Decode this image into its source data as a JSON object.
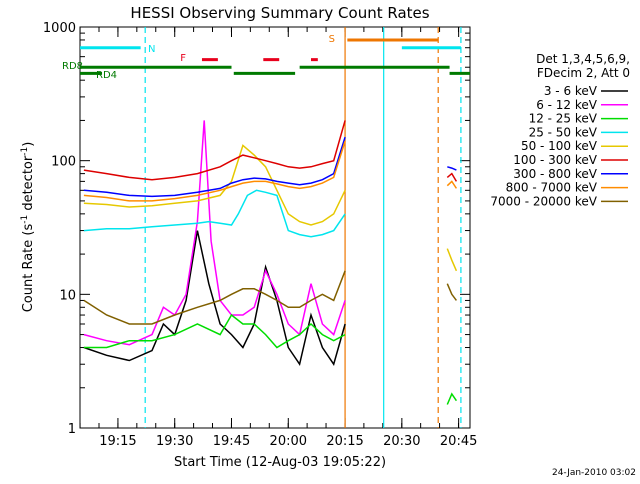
{
  "chart_data": {
    "type": "line",
    "title": "HESSI Observing Summary Count Rates",
    "xlabel": "Start Time (12-Aug-03 19:05:22)",
    "ylabel": "Count Rate (s⁻¹ detector⁻¹)",
    "ylabel_parts": {
      "base": "Count Rate (s",
      "exp1": "-1",
      "mid": " detector",
      "exp2": "-1",
      "end": ")"
    },
    "yscale": "log",
    "ylim": [
      1,
      1000
    ],
    "xlim_minutes": [
      19.083,
      20.8
    ],
    "x_tick_labels": [
      "19:15",
      "19:30",
      "19:45",
      "20:00",
      "20:15",
      "20:30",
      "20:45"
    ],
    "x_tick_values": [
      19.25,
      19.5,
      19.75,
      20.0,
      20.25,
      20.5,
      20.75
    ],
    "y_tick_labels": [
      "1",
      "10",
      "100",
      "1000"
    ],
    "y_tick_values": [
      1,
      10,
      100,
      1000
    ],
    "grid": false,
    "legend_position": "right",
    "legend_header": [
      "Det 1,3,4,5,6,9,",
      "FDecim 2, Att 0"
    ],
    "footer_date": "24-Jan-2010 03:02",
    "flags": {
      "N": {
        "label": "N",
        "color": "#00e5ee",
        "y": 700,
        "segments": [
          [
            19.083,
            19.35
          ],
          [
            20.5,
            20.76
          ]
        ]
      },
      "F": {
        "label": "F",
        "color": "#e8001c",
        "y": 570,
        "segments": [
          [
            19.62,
            19.69
          ],
          [
            19.89,
            19.96
          ],
          [
            20.1,
            20.13
          ]
        ]
      },
      "S": {
        "label": "S",
        "color": "#ee7600",
        "y": 800,
        "segments": [
          [
            20.26,
            20.66
          ]
        ]
      },
      "RD8": {
        "label": "RD8",
        "color": "#007a00",
        "y": 500,
        "segments": [
          [
            19.083,
            19.75
          ],
          [
            20.05,
            20.71
          ]
        ]
      },
      "RD4": {
        "label": "RD4",
        "color": "#007a00",
        "y": 450,
        "segments": [
          [
            19.083,
            19.18
          ],
          [
            19.76,
            20.03
          ],
          [
            20.71,
            20.8
          ]
        ]
      }
    },
    "vlines": [
      {
        "x": 19.37,
        "color": "#00e5ee",
        "style": "dashed"
      },
      {
        "x": 20.25,
        "color": "#ee7600",
        "style": "solid"
      },
      {
        "x": 20.42,
        "color": "#00e5ee",
        "style": "solid"
      },
      {
        "x": 20.66,
        "color": "#ee7600",
        "style": "dashed"
      },
      {
        "x": 20.76,
        "color": "#00e5ee",
        "style": "dashed"
      }
    ],
    "series": [
      {
        "name": "3 - 6 keV",
        "color": "#000000",
        "x": [
          19.1,
          19.2,
          19.3,
          19.4,
          19.45,
          19.5,
          19.55,
          19.6,
          19.65,
          19.7,
          19.75,
          19.8,
          19.85,
          19.9,
          19.95,
          20.0,
          20.05,
          20.1,
          20.15,
          20.2,
          20.25
        ],
        "y": [
          4,
          3.5,
          3.2,
          3.8,
          6,
          5,
          9,
          30,
          12,
          6,
          5,
          4,
          6,
          16,
          9,
          4,
          3,
          7,
          4,
          3,
          6
        ]
      },
      {
        "name": "6 - 12 keV",
        "color": "#ff00ff",
        "x": [
          19.1,
          19.2,
          19.3,
          19.4,
          19.45,
          19.5,
          19.55,
          19.6,
          19.63,
          19.66,
          19.7,
          19.75,
          19.8,
          19.85,
          19.9,
          19.95,
          20.0,
          20.05,
          20.1,
          20.15,
          20.2,
          20.25
        ],
        "y": [
          5,
          4.5,
          4.2,
          5,
          8,
          7,
          10,
          35,
          200,
          25,
          9,
          7,
          7,
          8,
          15,
          10,
          6,
          5,
          12,
          6,
          5,
          9
        ]
      },
      {
        "name": "12 - 25 keV",
        "color": "#00dd00",
        "x": [
          19.1,
          19.2,
          19.3,
          19.4,
          19.5,
          19.6,
          19.7,
          19.75,
          19.8,
          19.85,
          19.9,
          19.95,
          20.0,
          20.05,
          20.1,
          20.15,
          20.2,
          20.25
        ],
        "y": [
          4,
          4,
          4.5,
          4.5,
          5,
          6,
          5,
          7,
          6,
          6,
          5,
          4,
          4.5,
          5,
          6,
          5,
          4.5,
          5
        ]
      },
      {
        "name": "25 - 50 keV",
        "color": "#00e5ee",
        "x": [
          19.1,
          19.2,
          19.3,
          19.4,
          19.5,
          19.6,
          19.65,
          19.7,
          19.75,
          19.78,
          19.82,
          19.86,
          19.9,
          19.95,
          20.0,
          20.05,
          20.1,
          20.15,
          20.2,
          20.25
        ],
        "y": [
          30,
          31,
          31,
          32,
          33,
          34,
          35,
          34,
          33,
          40,
          55,
          60,
          58,
          55,
          30,
          28,
          27,
          28,
          30,
          40
        ]
      },
      {
        "name": "50 - 100 keV",
        "color": "#e6c800",
        "x": [
          19.1,
          19.2,
          19.3,
          19.4,
          19.5,
          19.6,
          19.7,
          19.75,
          19.8,
          19.85,
          19.9,
          19.95,
          20.0,
          20.05,
          20.1,
          20.15,
          20.2,
          20.25
        ],
        "y": [
          48,
          47,
          45,
          46,
          48,
          50,
          55,
          70,
          130,
          110,
          90,
          60,
          40,
          35,
          33,
          35,
          40,
          60
        ]
      },
      {
        "name": "100 - 300 keV",
        "color": "#dd0000",
        "x": [
          19.1,
          19.2,
          19.3,
          19.4,
          19.5,
          19.6,
          19.7,
          19.75,
          19.8,
          19.85,
          19.9,
          19.95,
          20.0,
          20.05,
          20.1,
          20.15,
          20.2,
          20.25
        ],
        "y": [
          85,
          80,
          75,
          72,
          75,
          80,
          90,
          100,
          110,
          105,
          100,
          95,
          90,
          88,
          90,
          95,
          100,
          200
        ]
      },
      {
        "name": "300 - 800 keV",
        "color": "#0000ff",
        "x": [
          19.1,
          19.2,
          19.3,
          19.4,
          19.5,
          19.6,
          19.7,
          19.75,
          19.8,
          19.85,
          19.9,
          19.95,
          20.0,
          20.05,
          20.1,
          20.15,
          20.2,
          20.25
        ],
        "y": [
          60,
          58,
          55,
          54,
          55,
          58,
          62,
          68,
          72,
          74,
          73,
          70,
          68,
          66,
          68,
          72,
          80,
          150
        ]
      },
      {
        "name": "800 - 7000 keV",
        "color": "#ff8c00",
        "x": [
          19.1,
          19.2,
          19.3,
          19.4,
          19.5,
          19.6,
          19.7,
          19.75,
          19.8,
          19.85,
          19.9,
          19.95,
          20.0,
          20.05,
          20.1,
          20.15,
          20.2,
          20.25
        ],
        "y": [
          55,
          53,
          50,
          50,
          52,
          55,
          60,
          64,
          68,
          70,
          70,
          67,
          64,
          62,
          64,
          68,
          75,
          140
        ]
      },
      {
        "name": "7000 - 20000 keV",
        "color": "#806000",
        "x": [
          19.1,
          19.2,
          19.3,
          19.4,
          19.5,
          19.6,
          19.7,
          19.75,
          19.8,
          19.85,
          19.9,
          19.95,
          20.0,
          20.05,
          20.1,
          20.15,
          20.2,
          20.25
        ],
        "y": [
          9,
          7,
          6,
          6,
          7,
          8,
          9,
          10,
          11,
          11,
          10,
          9,
          8,
          8,
          9,
          10,
          9,
          15
        ]
      }
    ],
    "series_after": [
      {
        "name": "100 - 300 keV",
        "color": "#dd0000",
        "x": [
          20.7,
          20.72,
          20.74
        ],
        "y": [
          75,
          80,
          70
        ]
      },
      {
        "name": "300 - 800 keV",
        "color": "#0000ff",
        "x": [
          20.7,
          20.72,
          20.74
        ],
        "y": [
          90,
          88,
          85
        ]
      },
      {
        "name": "800 - 7000 keV",
        "color": "#ff8c00",
        "x": [
          20.7,
          20.72,
          20.74
        ],
        "y": [
          65,
          70,
          62
        ]
      },
      {
        "name": "50 - 100 keV",
        "color": "#e6c800",
        "x": [
          20.7,
          20.72,
          20.74
        ],
        "y": [
          22,
          18,
          15
        ]
      },
      {
        "name": "7000 - 20000 keV",
        "color": "#806000",
        "x": [
          20.7,
          20.72,
          20.74
        ],
        "y": [
          12,
          10,
          9
        ]
      },
      {
        "name": "12 - 25 keV",
        "color": "#00dd00",
        "x": [
          20.7,
          20.72,
          20.74
        ],
        "y": [
          1.5,
          1.8,
          1.6
        ]
      }
    ]
  }
}
